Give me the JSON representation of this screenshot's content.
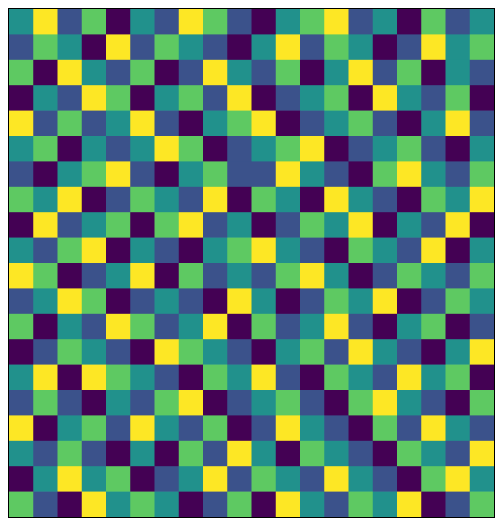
{
  "chart_data": {
    "type": "heatmap",
    "colors": [
      "#440154",
      "#3b528b",
      "#21918c",
      "#5ec962",
      "#fde725"
    ],
    "values": [
      [
        2,
        4,
        1,
        3,
        0,
        2,
        1,
        4,
        3,
        1,
        0,
        2,
        3,
        4,
        1,
        2,
        0,
        3,
        1,
        2
      ],
      [
        1,
        3,
        2,
        0,
        4,
        1,
        3,
        2,
        1,
        0,
        2,
        4,
        1,
        3,
        2,
        0,
        1,
        4,
        2,
        3
      ],
      [
        3,
        0,
        4,
        2,
        1,
        3,
        0,
        1,
        4,
        2,
        1,
        3,
        0,
        2,
        4,
        1,
        3,
        0,
        2,
        1
      ],
      [
        0,
        2,
        1,
        4,
        3,
        0,
        2,
        3,
        1,
        4,
        0,
        1,
        2,
        3,
        0,
        4,
        2,
        1,
        3,
        0
      ],
      [
        4,
        1,
        3,
        1,
        2,
        4,
        1,
        0,
        2,
        3,
        4,
        0,
        1,
        2,
        3,
        1,
        0,
        2,
        4,
        1
      ],
      [
        2,
        3,
        0,
        2,
        1,
        2,
        4,
        3,
        0,
        1,
        2,
        3,
        4,
        0,
        1,
        2,
        3,
        1,
        0,
        2
      ],
      [
        1,
        0,
        2,
        3,
        4,
        1,
        0,
        2,
        3,
        1,
        1,
        4,
        2,
        1,
        0,
        3,
        4,
        2,
        1,
        3
      ],
      [
        3,
        2,
        4,
        0,
        1,
        3,
        2,
        1,
        4,
        0,
        3,
        2,
        0,
        4,
        2,
        1,
        0,
        3,
        2,
        4
      ],
      [
        0,
        4,
        1,
        2,
        3,
        0,
        3,
        4,
        1,
        2,
        0,
        1,
        3,
        2,
        4,
        0,
        2,
        1,
        4,
        0
      ],
      [
        2,
        1,
        3,
        4,
        0,
        2,
        1,
        0,
        2,
        3,
        4,
        2,
        1,
        0,
        3,
        2,
        1,
        4,
        0,
        2
      ],
      [
        4,
        3,
        0,
        1,
        2,
        4,
        0,
        3,
        1,
        2,
        1,
        3,
        4,
        2,
        0,
        1,
        3,
        2,
        1,
        3
      ],
      [
        1,
        2,
        4,
        3,
        0,
        1,
        2,
        1,
        0,
        4,
        2,
        0,
        1,
        3,
        2,
        4,
        0,
        1,
        3,
        2
      ],
      [
        3,
        0,
        2,
        1,
        4,
        3,
        1,
        2,
        4,
        0,
        3,
        1,
        2,
        4,
        1,
        0,
        2,
        3,
        0,
        1
      ],
      [
        0,
        1,
        3,
        2,
        1,
        0,
        4,
        3,
        2,
        1,
        0,
        2,
        3,
        1,
        4,
        2,
        1,
        0,
        2,
        4
      ],
      [
        2,
        4,
        0,
        4,
        3,
        2,
        1,
        0,
        3,
        2,
        4,
        1,
        0,
        3,
        2,
        1,
        4,
        2,
        3,
        0
      ],
      [
        1,
        3,
        1,
        0,
        2,
        1,
        3,
        4,
        0,
        1,
        2,
        3,
        1,
        0,
        3,
        4,
        2,
        1,
        0,
        3
      ],
      [
        4,
        0,
        2,
        3,
        1,
        4,
        2,
        1,
        3,
        0,
        1,
        4,
        2,
        1,
        0,
        3,
        1,
        4,
        2,
        1
      ],
      [
        2,
        1,
        3,
        1,
        0,
        2,
        0,
        3,
        1,
        4,
        2,
        0,
        3,
        2,
        1,
        0,
        3,
        2,
        1,
        4
      ],
      [
        0,
        2,
        4,
        2,
        3,
        0,
        1,
        2,
        4,
        1,
        3,
        2,
        1,
        4,
        2,
        1,
        0,
        3,
        4,
        2
      ],
      [
        3,
        1,
        0,
        4,
        2,
        3,
        2,
        0,
        1,
        3,
        0,
        4,
        2,
        1,
        3,
        2,
        4,
        0,
        1,
        3
      ]
    ]
  }
}
